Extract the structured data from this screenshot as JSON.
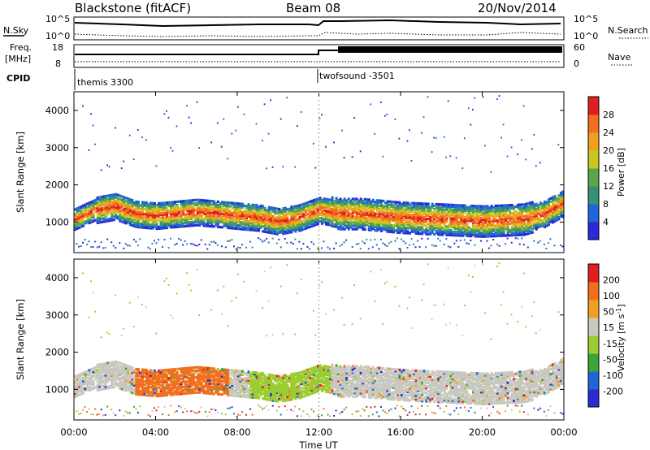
{
  "header": {
    "radar": "Blackstone (fitACF)",
    "beam": "Beam 08",
    "date": "20/Nov/2014"
  },
  "top_panels": {
    "nsky_label": "N.Sky",
    "nsearch_label": "N.Search",
    "nsky_ticks": [
      "10^5",
      "10^0"
    ],
    "nsearch_ticks": [
      "10^5",
      "10^0"
    ],
    "freq_label_1": "Freq.",
    "freq_label_2": "[MHz]",
    "freq_ticks": [
      "18",
      "8"
    ],
    "nave_label": "Nave",
    "nave_ticks": [
      "60",
      "0"
    ],
    "cpid_label": "CPID"
  },
  "cpid_segments": [
    {
      "name": "themis 3300",
      "start_hr": 0.0
    },
    {
      "name": "twofsound -3501",
      "start_hr": 12.0
    }
  ],
  "colors": {
    "power_scale": [
      "#2a2ad6",
      "#1e66d8",
      "#3a8f7a",
      "#57a84a",
      "#c8c820",
      "#f0a020",
      "#f07020",
      "#e02020"
    ],
    "velocity_scale": [
      "#2a2ad6",
      "#1e66d8",
      "#3aa63a",
      "#9acd32",
      "#c8c8c0",
      "#f0a020",
      "#f07020",
      "#e02020"
    ]
  },
  "chart_data": [
    {
      "type": "heatmap",
      "panel": "power",
      "ylabel": "Slant Range [km]",
      "xlabel": "Time UT",
      "x_ticks": [
        "00:00",
        "04:00",
        "08:00",
        "12:00",
        "16:00",
        "20:00",
        "00:00"
      ],
      "y_ticks": [
        1000,
        2000,
        3000,
        4000
      ],
      "xlim": [
        0,
        24
      ],
      "ylim": [
        180,
        4500
      ],
      "colorbar_label": "Power [dB]",
      "colorbar_ticks": [
        4,
        8,
        12,
        16,
        20,
        24,
        28
      ],
      "colorbar_range": [
        0,
        30
      ],
      "series": [
        {
          "name": "main echo band",
          "x": [
            0,
            1,
            2,
            3,
            4,
            5,
            6,
            7,
            8,
            9,
            10,
            11,
            12,
            13,
            14,
            16,
            18,
            20,
            22,
            23,
            24
          ],
          "y": [
            1050,
            1300,
            1400,
            1200,
            1150,
            1200,
            1250,
            1200,
            1150,
            1100,
            1000,
            1100,
            1300,
            1200,
            1200,
            1100,
            1050,
            1000,
            1050,
            1200,
            1500
          ]
        }
      ]
    },
    {
      "type": "heatmap",
      "panel": "velocity",
      "ylabel": "Slant Range [km]",
      "xlabel": "Time UT",
      "x_ticks": [
        "00:00",
        "04:00",
        "08:00",
        "12:00",
        "16:00",
        "20:00",
        "00:00"
      ],
      "y_ticks": [
        1000,
        2000,
        3000,
        4000
      ],
      "xlim": [
        0,
        24
      ],
      "ylim": [
        180,
        4500
      ],
      "colorbar_label": "Velocity [m s^-1]",
      "colorbar_ticks": [
        200,
        100,
        50,
        15,
        -15,
        -50,
        -100,
        -200
      ],
      "colorbar_range": [
        -250,
        250
      ]
    }
  ],
  "axis": {
    "time_label": "Time UT",
    "x_ticks": [
      "00:00",
      "04:00",
      "08:00",
      "12:00",
      "16:00",
      "20:00",
      "00:00"
    ],
    "range_label": "Slant Range [km]",
    "range_ticks": [
      "1000",
      "2000",
      "3000",
      "4000"
    ],
    "power_label": "Power [dB]",
    "power_ticks": [
      "28",
      "24",
      "20",
      "16",
      "12",
      "8",
      "4"
    ],
    "velocity_label": "Velocity [m s",
    "velocity_label_sup": "-1",
    "velocity_label_end": "]",
    "velocity_ticks": [
      "200",
      "100",
      "50",
      "15",
      "-15",
      "-50",
      "-100",
      "-200"
    ]
  }
}
